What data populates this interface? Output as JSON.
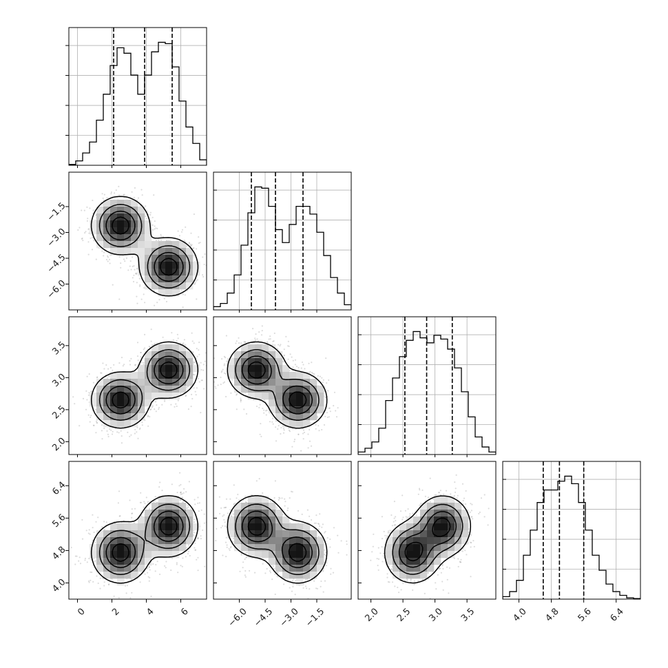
{
  "chart_data": {
    "type": "corner",
    "grid": true,
    "variables": [
      {
        "range": [
          -0.5,
          7.5
        ],
        "ticks": [
          0,
          2,
          4,
          6
        ],
        "tick_labels": [
          "0",
          "2",
          "4",
          "6"
        ],
        "quantiles": [
          2.1,
          3.9,
          5.5
        ],
        "hist": [
          0.6,
          3.2,
          9.0,
          17.0,
          33.0,
          52.0,
          73.0,
          86.0,
          82.0,
          66.0,
          52.0,
          66.0,
          83.0,
          90.0,
          89.0,
          72.0,
          47.0,
          28.0,
          16.0,
          4.0
        ]
      },
      {
        "range": [
          -7.5,
          0.5
        ],
        "ticks": [
          -6.0,
          -4.5,
          -3.0,
          -1.5
        ],
        "tick_labels": [
          "−6.0",
          "−4.5",
          "−3.0",
          "−1.5"
        ],
        "quantiles": [
          -5.3,
          -3.9,
          -2.3
        ],
        "hist": [
          2.5,
          5.0,
          13.0,
          27.0,
          50.0,
          75.0,
          95.0,
          94.0,
          80.0,
          62.0,
          52.0,
          66.0,
          80.0,
          80.0,
          74.0,
          60.0,
          42.0,
          25.0,
          13.0,
          4.0
        ]
      },
      {
        "range": [
          1.8,
          3.95
        ],
        "ticks": [
          2.0,
          2.5,
          3.0,
          3.5
        ],
        "tick_labels": [
          "2.0",
          "2.5",
          "3.0",
          "3.5"
        ],
        "quantiles": [
          2.53,
          2.87,
          3.27
        ],
        "hist": [
          2.0,
          5.0,
          10.0,
          21.0,
          43.0,
          61.0,
          78.0,
          91.0,
          98.0,
          93.0,
          89.0,
          95.0,
          92.0,
          84.0,
          69.0,
          50.0,
          30.0,
          14.0,
          6.0,
          2.0
        ]
      },
      {
        "range": [
          3.6,
          7.0
        ],
        "ticks": [
          4.0,
          4.8,
          5.6,
          6.4
        ],
        "tick_labels": [
          "4.0",
          "4.8",
          "5.6",
          "6.4"
        ],
        "quantiles": [
          4.6,
          5.0,
          5.6
        ],
        "hist": [
          2.0,
          6.0,
          15.0,
          35.0,
          55.0,
          77.0,
          87.0,
          87.0,
          94.0,
          98.0,
          92.0,
          77.0,
          55.0,
          35.0,
          23.0,
          12.0,
          6.0,
          3.0,
          1.0,
          0.5
        ]
      }
    ],
    "modes": [
      {
        "mean": [
          2.5,
          -2.6,
          2.65,
          4.75
        ],
        "sd": [
          0.85,
          0.85,
          0.22,
          0.38
        ]
      },
      {
        "mean": [
          5.3,
          -5.0,
          3.12,
          5.4
        ],
        "sd": [
          0.85,
          0.85,
          0.22,
          0.38
        ]
      }
    ]
  }
}
